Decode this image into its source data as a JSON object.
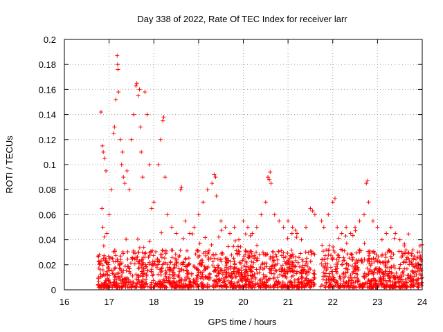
{
  "chart_data": {
    "type": "scatter",
    "title": "Day 338 of 2022, Rate Of TEC Index for receiver larr",
    "xlabel": "GPS time / hours",
    "ylabel": "ROTI / TECUs",
    "xlim": [
      16,
      24
    ],
    "ylim": [
      0,
      0.2
    ],
    "xticks": [
      "16",
      "17",
      "18",
      "19",
      "20",
      "21",
      "22",
      "23",
      "24"
    ],
    "yticks": [
      "0",
      "0.02",
      "0.04",
      "0.06",
      "0.08",
      "0.1",
      "0.12",
      "0.14",
      "0.16",
      "0.18",
      "0.2"
    ],
    "grid": true,
    "marker": "plus",
    "color": "#ff0000",
    "series": [
      {
        "name": "ROTI",
        "x": [
          16.82,
          16.85,
          16.87,
          16.9,
          16.93,
          16.86,
          16.88,
          16.91,
          16.84,
          16.95,
          17.0,
          17.05,
          17.1,
          17.12,
          17.15,
          17.18,
          17.2,
          17.19,
          17.21,
          17.25,
          17.3,
          17.28,
          17.32,
          17.35,
          17.4,
          17.45,
          17.5,
          17.55,
          17.6,
          17.62,
          17.65,
          17.68,
          17.7,
          17.72,
          17.75,
          17.8,
          17.85,
          17.9,
          17.95,
          18.0,
          18.1,
          18.15,
          18.2,
          18.22,
          18.25,
          18.3,
          18.4,
          18.5,
          18.6,
          18.62,
          18.7,
          18.8,
          18.9,
          19.0,
          19.1,
          19.2,
          19.3,
          19.35,
          19.38,
          19.4,
          19.5,
          19.6,
          19.7,
          19.8,
          19.9,
          20.0,
          20.1,
          20.2,
          20.3,
          20.4,
          20.5,
          20.55,
          20.58,
          20.6,
          20.62,
          20.7,
          20.8,
          20.9,
          21.0,
          21.1,
          21.2,
          21.3,
          21.4,
          21.5,
          21.55,
          21.6,
          21.75,
          21.8,
          21.9,
          22.0,
          22.05,
          22.1,
          22.2,
          22.3,
          22.4,
          22.5,
          22.6,
          22.7,
          22.75,
          22.78,
          22.8,
          22.9,
          23.0,
          23.1,
          23.2,
          23.3,
          23.4,
          23.5,
          23.6,
          23.7,
          23.8,
          23.9,
          23.95,
          24.0
        ],
        "y": [
          0.142,
          0.115,
          0.11,
          0.105,
          0.095,
          0.05,
          0.035,
          0.025,
          0.065,
          0.045,
          0.06,
          0.08,
          0.125,
          0.13,
          0.152,
          0.187,
          0.176,
          0.18,
          0.158,
          0.12,
          0.11,
          0.1,
          0.09,
          0.085,
          0.095,
          0.08,
          0.12,
          0.14,
          0.163,
          0.165,
          0.155,
          0.16,
          0.13,
          0.11,
          0.09,
          0.158,
          0.14,
          0.1,
          0.065,
          0.07,
          0.1,
          0.12,
          0.135,
          0.138,
          0.09,
          0.06,
          0.05,
          0.045,
          0.08,
          0.082,
          0.055,
          0.045,
          0.05,
          0.06,
          0.07,
          0.08,
          0.085,
          0.092,
          0.09,
          0.075,
          0.055,
          0.05,
          0.045,
          0.05,
          0.04,
          0.055,
          0.05,
          0.045,
          0.05,
          0.06,
          0.07,
          0.09,
          0.088,
          0.094,
          0.085,
          0.06,
          0.055,
          0.05,
          0.055,
          0.05,
          0.045,
          0.04,
          0.05,
          0.065,
          0.063,
          0.06,
          0.055,
          0.05,
          0.06,
          0.07,
          0.073,
          0.05,
          0.045,
          0.05,
          0.045,
          0.05,
          0.055,
          0.06,
          0.085,
          0.087,
          0.07,
          0.055,
          0.05,
          0.04,
          0.045,
          0.05,
          0.045,
          0.04,
          0.035,
          0.03,
          0.025,
          0.03,
          0.035,
          0.036
        ]
      }
    ]
  }
}
